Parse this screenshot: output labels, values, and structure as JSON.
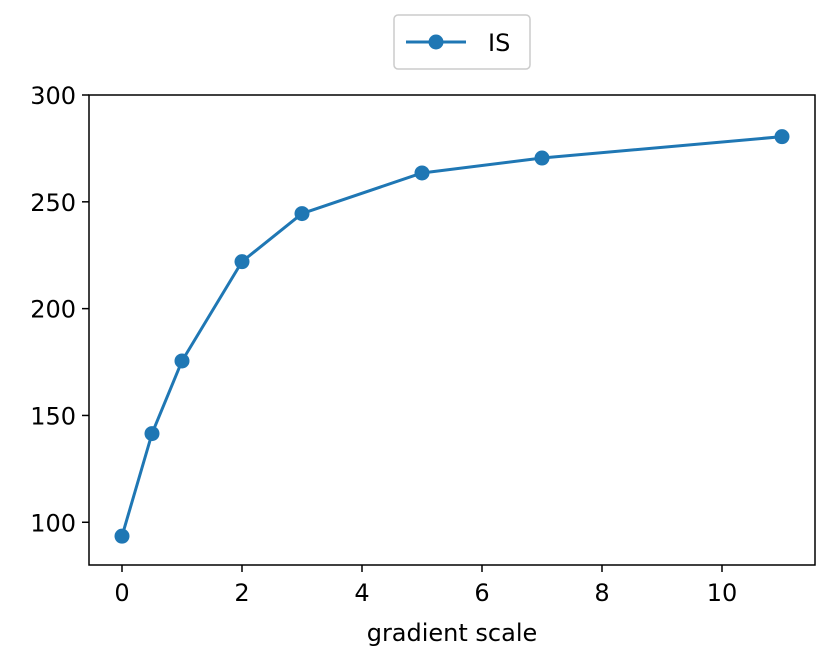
{
  "chart_data": {
    "type": "line",
    "xlabel": "gradient scale",
    "ylabel": "",
    "xlim": [
      -0.55,
      11.55
    ],
    "ylim": [
      80,
      300
    ],
    "xticks": [
      0,
      2,
      4,
      6,
      8,
      10
    ],
    "yticks": [
      100,
      150,
      200,
      250,
      300
    ],
    "grid": false,
    "legend_position": "top-center",
    "series": [
      {
        "name": "IS",
        "color": "#1f77b4",
        "marker": "circle",
        "x": [
          0,
          0.5,
          1,
          2,
          3,
          5,
          7,
          11
        ],
        "y": [
          93.5,
          141.5,
          175.5,
          222,
          244.5,
          263.5,
          270.5,
          280.5
        ]
      }
    ]
  }
}
